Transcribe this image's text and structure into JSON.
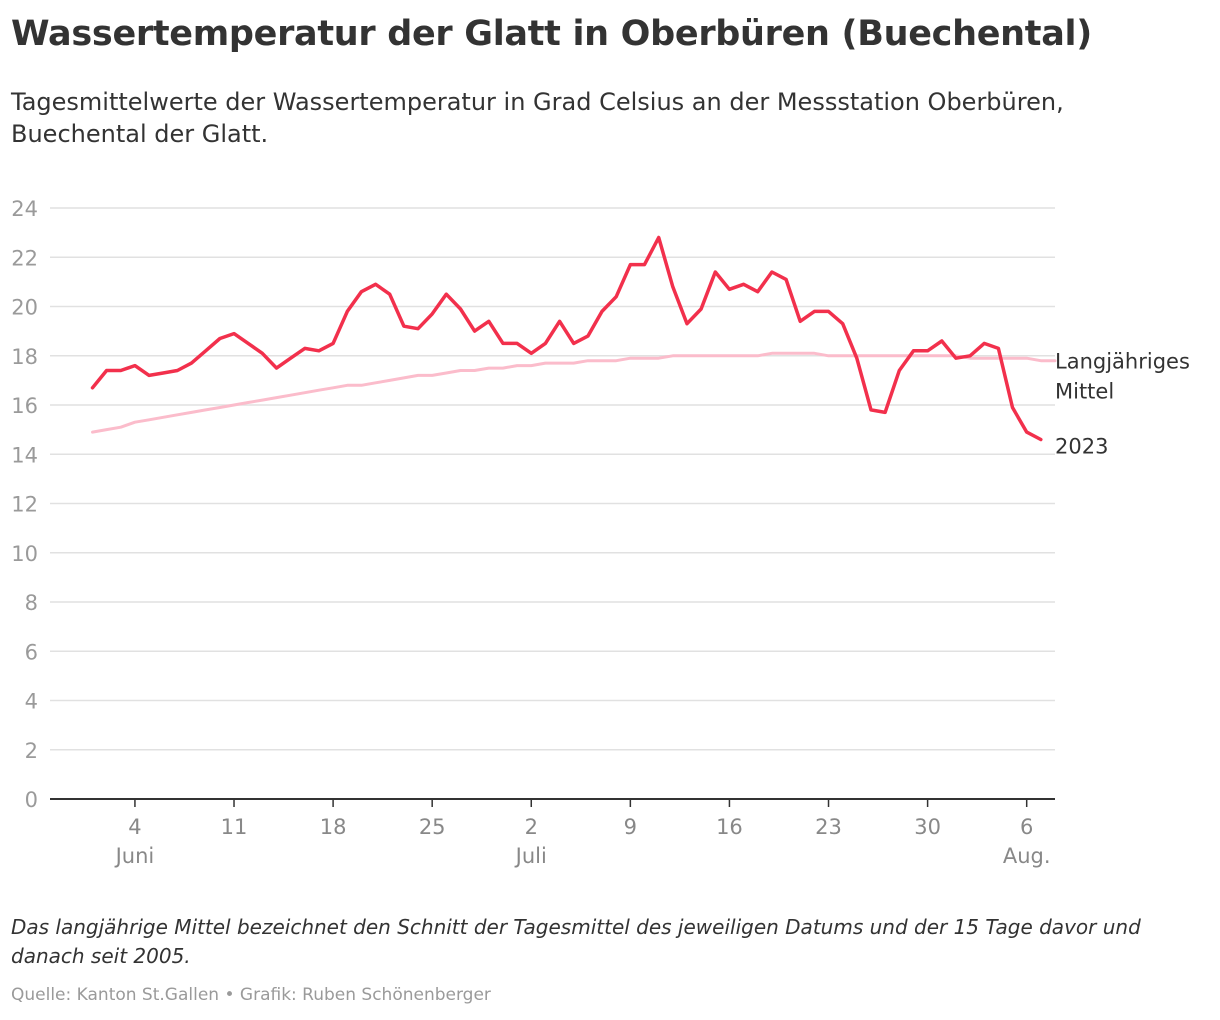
{
  "title": "Wassertemperatur der Glatt in Oberbüren (Buechental)",
  "subtitle": "Tagesmittelwerte der Wassertemperatur in Grad Celsius an der Messstation Oberbüren, Buechental der Glatt.",
  "note": "Das langjährige Mittel bezeichnet den Schnitt der Tagesmittel des jeweiligen Datums und der 15 Tage davor und danach seit 2005.",
  "source": "Quelle: Kanton St.Gallen • Grafik: Ruben Schönenberger",
  "colors": {
    "series_2023": "#f2304c",
    "series_mean": "#fbbccb",
    "grid": "#e1e1e1",
    "axis": "#333333",
    "tick_text": "#9a9a9a"
  },
  "chart_data": {
    "type": "line",
    "title": "Wassertemperatur der Glatt in Oberbüren (Buechental)",
    "xlabel": "",
    "ylabel": "",
    "ylim": [
      0,
      24
    ],
    "y_ticks": [
      0,
      2,
      4,
      6,
      8,
      10,
      12,
      14,
      16,
      18,
      20,
      22,
      24
    ],
    "grid": true,
    "x_ticks": [
      {
        "date": "2023-06-04",
        "label": "4",
        "sublabel": "Juni"
      },
      {
        "date": "2023-06-11",
        "label": "11",
        "sublabel": ""
      },
      {
        "date": "2023-06-18",
        "label": "18",
        "sublabel": ""
      },
      {
        "date": "2023-06-25",
        "label": "25",
        "sublabel": ""
      },
      {
        "date": "2023-07-02",
        "label": "2",
        "sublabel": "Juli"
      },
      {
        "date": "2023-07-09",
        "label": "9",
        "sublabel": ""
      },
      {
        "date": "2023-07-16",
        "label": "16",
        "sublabel": ""
      },
      {
        "date": "2023-07-23",
        "label": "23",
        "sublabel": ""
      },
      {
        "date": "2023-07-30",
        "label": "30",
        "sublabel": ""
      },
      {
        "date": "2023-08-06",
        "label": "6",
        "sublabel": "Aug."
      }
    ],
    "x_range": [
      "2023-05-29",
      "2023-08-08"
    ],
    "series": [
      {
        "name": "Langjähriges Mittel",
        "label": "Langjähriges Mittel",
        "label_lines": [
          "Langjähriges",
          "Mittel"
        ],
        "color": "#fbbccb",
        "start_date": "2023-06-01",
        "values": [
          14.9,
          15.0,
          15.1,
          15.3,
          15.4,
          15.5,
          15.6,
          15.7,
          15.8,
          15.9,
          16.0,
          16.1,
          16.2,
          16.3,
          16.4,
          16.5,
          16.6,
          16.7,
          16.8,
          16.8,
          16.9,
          17.0,
          17.1,
          17.2,
          17.2,
          17.3,
          17.4,
          17.4,
          17.5,
          17.5,
          17.6,
          17.6,
          17.7,
          17.7,
          17.7,
          17.8,
          17.8,
          17.8,
          17.9,
          17.9,
          17.9,
          18.0,
          18.0,
          18.0,
          18.0,
          18.0,
          18.0,
          18.0,
          18.1,
          18.1,
          18.1,
          18.1,
          18.0,
          18.0,
          18.0,
          18.0,
          18.0,
          18.0,
          18.0,
          18.0,
          18.0,
          18.0,
          17.9,
          17.9,
          17.9,
          17.9,
          17.9,
          17.8,
          17.8
        ]
      },
      {
        "name": "2023",
        "label": "2023",
        "label_lines": [
          "2023"
        ],
        "color": "#f2304c",
        "start_date": "2023-06-01",
        "values": [
          16.7,
          17.4,
          17.4,
          17.6,
          17.2,
          17.3,
          17.4,
          17.7,
          18.2,
          18.7,
          18.9,
          18.5,
          18.1,
          17.5,
          17.9,
          18.3,
          18.2,
          18.5,
          19.8,
          20.6,
          20.9,
          20.5,
          19.2,
          19.1,
          19.7,
          20.5,
          19.9,
          19.0,
          19.4,
          18.5,
          18.5,
          18.1,
          18.5,
          19.4,
          18.5,
          18.8,
          19.8,
          20.4,
          21.7,
          21.7,
          22.8,
          20.8,
          19.3,
          19.9,
          21.4,
          20.7,
          20.9,
          20.6,
          21.4,
          21.1,
          19.4,
          19.8,
          19.8,
          19.3,
          17.9,
          15.8,
          15.7,
          17.4,
          18.2,
          18.2,
          18.6,
          17.9,
          18.0,
          18.5,
          18.3,
          15.9,
          14.9,
          14.6
        ]
      }
    ]
  }
}
